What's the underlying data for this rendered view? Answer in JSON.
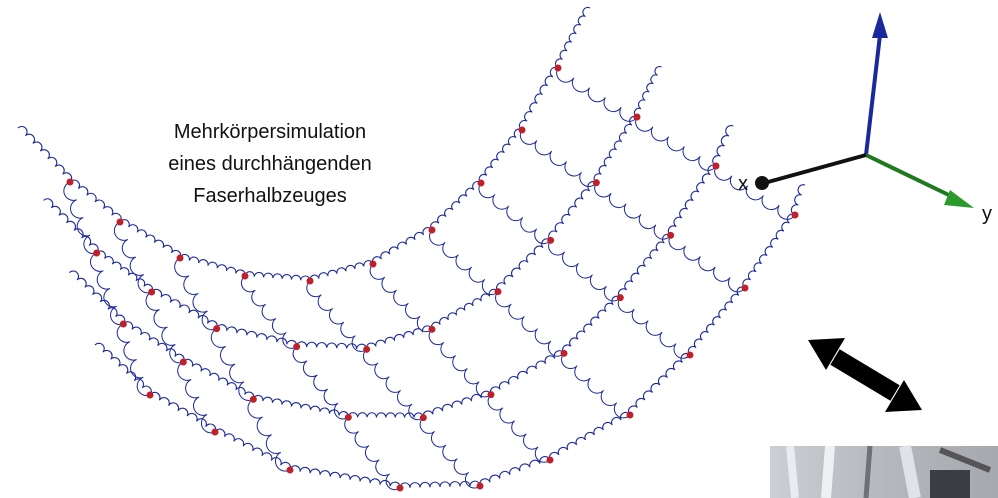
{
  "caption": {
    "lines": [
      "Mehrkörpersimulation",
      "eines durchhängenden",
      "Faserhalbzeuges"
    ]
  },
  "axes": {
    "x": "x",
    "y": "y"
  }
}
